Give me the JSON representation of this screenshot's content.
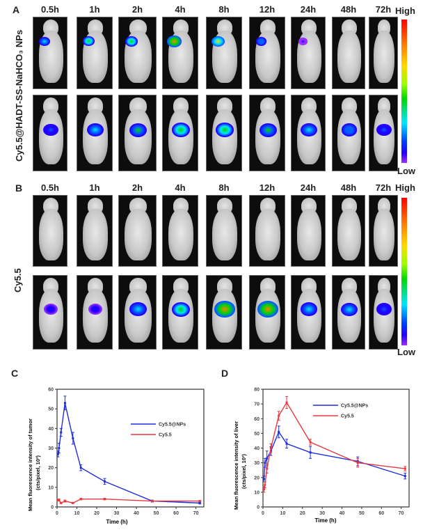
{
  "panel_a": {
    "letter": "A",
    "row_label": "Cy5.5@HADT-SS-NaHCO₃ NPs",
    "time_points": [
      "0.5h",
      "1h",
      "2h",
      "4h",
      "8h",
      "12h",
      "24h",
      "48h",
      "72h"
    ],
    "tumor_signal": [
      0.45,
      0.55,
      0.6,
      0.85,
      0.7,
      0.35,
      0.1,
      0,
      0
    ],
    "liver_signal": [
      0.3,
      0.45,
      0.5,
      0.55,
      0.55,
      0.5,
      0.4,
      0.35,
      0.25
    ]
  },
  "panel_b": {
    "letter": "B",
    "row_label": "Cy5.5",
    "time_points": [
      "0.5h",
      "1h",
      "2h",
      "4h",
      "8h",
      "12h",
      "24h",
      "48h",
      "72h"
    ],
    "tumor_signal": [
      0,
      0,
      0,
      0,
      0,
      0,
      0,
      0,
      0
    ],
    "liver_signal": [
      0.2,
      0.2,
      0.45,
      0.6,
      0.8,
      0.85,
      0.45,
      0.4,
      0.3
    ]
  },
  "colorbar": {
    "high": "High",
    "low": "Low"
  },
  "chart_data": [
    {
      "panel": "C",
      "type": "line",
      "title": "",
      "xlabel": "Time (h)",
      "ylabel": "Mean fluorescence intensity of tumor",
      "ylabel2": "(cts/pixel, 10³)",
      "xlim": [
        0,
        72
      ],
      "ylim": [
        0,
        60
      ],
      "xticks": [
        0,
        10,
        20,
        30,
        40,
        50,
        60,
        70
      ],
      "yticks": [
        0,
        10,
        20,
        30,
        40,
        50,
        60
      ],
      "legend": "right",
      "series": [
        {
          "name": "Cy5.5@NPs",
          "color": "#1f2de0",
          "x": [
            0.5,
            1,
            2,
            4,
            8,
            12,
            24,
            48,
            72
          ],
          "y": [
            27,
            30,
            38,
            53,
            35,
            20,
            13,
            3,
            2
          ],
          "err": [
            1.5,
            2.5,
            2,
            3.5,
            3,
            1.5,
            1.5,
            0.5,
            0.5
          ]
        },
        {
          "name": "Cy5.5",
          "color": "#e8393f",
          "x": [
            0.5,
            1,
            2,
            4,
            8,
            12,
            24,
            48,
            72
          ],
          "y": [
            3.5,
            3.5,
            2,
            3,
            2,
            4,
            4,
            3,
            3
          ],
          "err": [
            0.5,
            0.5,
            0.3,
            0.5,
            0.3,
            0.4,
            0.4,
            0.3,
            0.3
          ]
        }
      ]
    },
    {
      "panel": "D",
      "type": "line",
      "title": "",
      "xlabel": "Time (h)",
      "ylabel": "Mean fluorescence intensity of liver",
      "ylabel2": "(cts/pixel, 10³)",
      "xlim": [
        0,
        72
      ],
      "ylim": [
        0,
        80
      ],
      "xticks": [
        0,
        10,
        20,
        30,
        40,
        50,
        60,
        70
      ],
      "yticks": [
        0,
        10,
        20,
        30,
        40,
        50,
        60,
        70,
        80
      ],
      "legend": "top-right",
      "series": [
        {
          "name": "Cy5.5@NPs",
          "color": "#1f2de0",
          "x": [
            0.5,
            1,
            2,
            4,
            8,
            12,
            24,
            48,
            72
          ],
          "y": [
            19,
            30,
            33,
            38,
            51,
            43,
            37,
            31,
            21
          ],
          "err": [
            2,
            3,
            5,
            3,
            4,
            3,
            4,
            3,
            2
          ]
        },
        {
          "name": "Cy5.5",
          "color": "#e8393f",
          "x": [
            0.5,
            1,
            2,
            4,
            8,
            12,
            24,
            48,
            72
          ],
          "y": [
            12,
            15,
            26,
            40,
            62,
            71,
            44,
            30,
            26
          ],
          "err": [
            2,
            2,
            3,
            3,
            3,
            4,
            2,
            3,
            1.5
          ]
        }
      ]
    }
  ]
}
